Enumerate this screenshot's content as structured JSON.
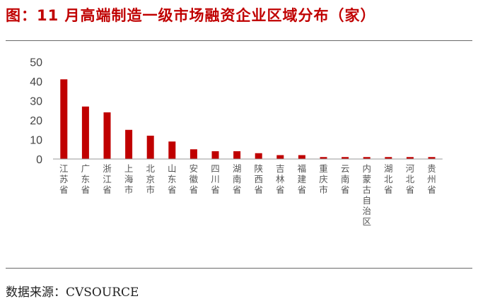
{
  "title": "图：11 月高端制造一级市场融资企业区域分布（家）",
  "source": "数据来源：CVSOURCE",
  "chart_data": {
    "type": "bar",
    "categories": [
      "江苏省",
      "广东省",
      "浙江省",
      "上海市",
      "北京市",
      "山东省",
      "安徽省",
      "四川省",
      "湖南省",
      "陕西省",
      "吉林省",
      "福建省",
      "重庆市",
      "云南省",
      "内蒙古自治区",
      "湖北省",
      "河北省",
      "贵州省"
    ],
    "values": [
      41,
      27,
      24,
      15,
      12,
      9,
      5,
      4,
      4,
      3,
      2,
      2,
      1,
      1,
      1,
      1,
      1,
      1
    ],
    "yticks": [
      0,
      10,
      20,
      30,
      40,
      50
    ],
    "ylim": [
      0,
      50
    ],
    "color": "#c00000"
  }
}
